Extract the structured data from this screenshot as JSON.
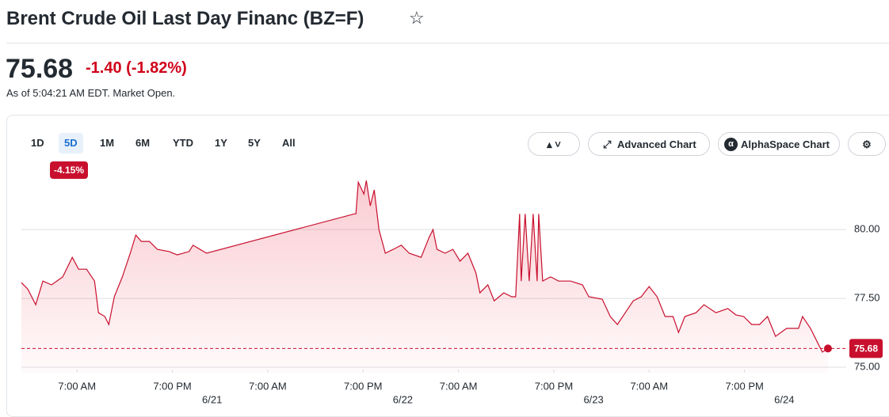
{
  "header": {
    "title": "Brent Crude Oil Last Day Financ (BZ=F)"
  },
  "quote": {
    "price": "75.68",
    "change": "-1.40",
    "change_percent": "(-1.82%)",
    "as_of": "As of 5:04:21 AM EDT. Market Open."
  },
  "toolbar": {
    "ranges": [
      "1D",
      "5D",
      "1M",
      "6M",
      "YTD",
      "1Y",
      "5Y",
      "All"
    ],
    "selected": 1,
    "range_change": "-4.15%",
    "buttons": [
      "Advanced Chart",
      "AlphaSpace Chart"
    ]
  },
  "chart_data": {
    "type": "line",
    "series": [
      {
        "color": "#c8102e",
        "x": [
          0,
          0.8,
          1.8,
          2.7,
          3.8,
          5.2,
          6.4,
          7.2,
          8.2,
          9.2,
          9.7,
          10.5,
          11.0,
          11.7,
          12.7,
          13.7,
          14.4,
          15.1,
          16.1,
          17.1,
          18.6,
          19.6,
          21.1,
          21.6,
          23.3,
          41.9,
          42.1,
          42.4,
          43.1,
          43.4,
          43.9,
          44.4,
          45.0,
          45.8,
          46.8,
          47.8,
          48.8,
          50.3,
          51.3,
          51.8,
          52.3,
          53.3,
          54.3,
          55.2,
          56.2,
          57.2,
          57.7,
          58.7,
          59.5,
          60.7,
          61.7,
          62.2,
          62.7,
          62.9,
          63.4,
          63.9,
          64.4,
          64.9,
          65.1,
          65.6,
          66.6,
          67.6,
          69.1,
          70.6,
          71.4,
          73.1,
          74.1,
          75.0,
          76.0,
          77.0,
          78.0,
          79.0,
          80.0,
          81.0,
          82.0,
          82.7,
          83.5,
          84.9,
          85.9,
          87.4,
          88.9,
          89.9,
          90.9,
          91.9,
          92.9,
          93.9,
          94.9,
          96.3,
          97.8,
          98.3,
          99.3,
          100.3,
          100.8,
          101.5
        ],
        "values": [
          78.07,
          77.84,
          77.27,
          78.13,
          77.99,
          78.28,
          78.99,
          78.56,
          78.56,
          78.13,
          76.98,
          76.84,
          76.55,
          77.56,
          78.28,
          79.14,
          79.8,
          79.57,
          79.57,
          79.28,
          79.2,
          79.08,
          79.2,
          79.43,
          79.14,
          80.57,
          80.57,
          81.72,
          81.29,
          81.78,
          80.86,
          81.44,
          80.0,
          79.14,
          79.28,
          79.43,
          79.14,
          78.99,
          79.71,
          80.0,
          79.28,
          79.14,
          79.28,
          78.85,
          79.14,
          78.42,
          77.7,
          77.99,
          77.41,
          77.7,
          77.56,
          77.56,
          80.57,
          78.13,
          80.57,
          78.13,
          80.57,
          78.13,
          80.57,
          78.13,
          78.28,
          78.13,
          78.13,
          77.99,
          77.56,
          77.47,
          76.84,
          76.55,
          76.98,
          77.41,
          77.56,
          77.93,
          77.56,
          76.84,
          76.84,
          76.26,
          76.84,
          76.98,
          77.27,
          76.98,
          77.13,
          76.9,
          76.84,
          76.55,
          76.55,
          76.84,
          76.12,
          76.41,
          76.41,
          76.84,
          76.41,
          75.83,
          75.55,
          75.68
        ]
      }
    ],
    "price_line": 75.68,
    "xlim": [
      0,
      103
    ],
    "ylim": [
      74.8,
      81.9
    ],
    "xticks": [
      {
        "value": 7,
        "label": "7:00 AM"
      },
      {
        "value": 19,
        "label": "7:00 PM"
      },
      {
        "value": 31,
        "label": "7:00 AM"
      },
      {
        "value": 43,
        "label": "7:00 PM"
      },
      {
        "value": 55,
        "label": "7:00 AM"
      },
      {
        "value": 67,
        "label": "7:00 PM"
      },
      {
        "value": 79,
        "label": "7:00 AM"
      },
      {
        "value": 91,
        "label": "7:00 PM"
      }
    ],
    "date_ticks": [
      {
        "value": 24,
        "label": "6/21"
      },
      {
        "value": 48,
        "label": "6/22"
      },
      {
        "value": 72,
        "label": "6/23"
      },
      {
        "value": 96,
        "label": "6/24"
      }
    ],
    "yticks": [
      {
        "value": 75,
        "label": "75.00"
      },
      {
        "value": 77.5,
        "label": "77.50"
      },
      {
        "value": 80,
        "label": "80.00"
      }
    ],
    "grid": true
  }
}
